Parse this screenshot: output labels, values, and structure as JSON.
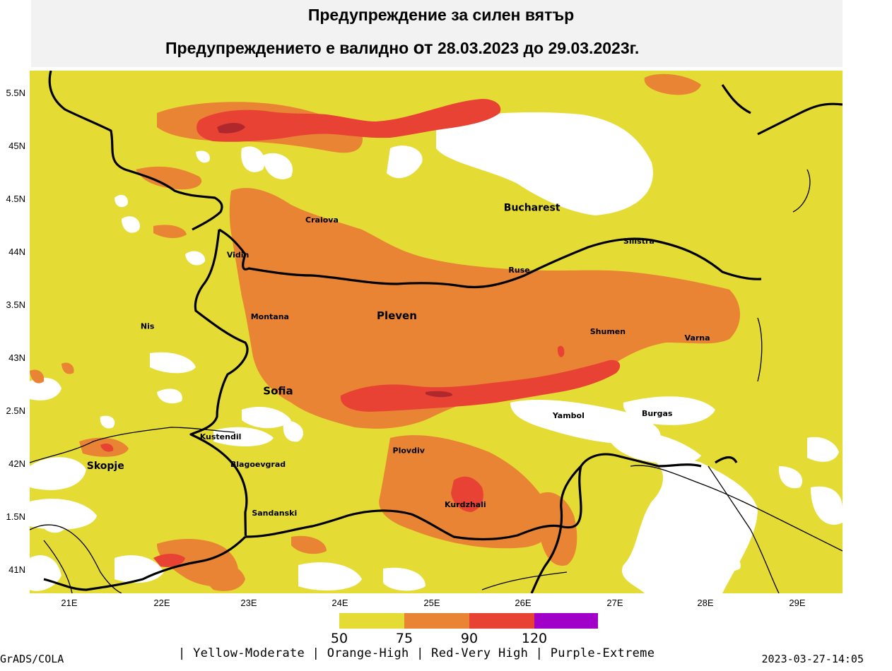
{
  "title": {
    "line1": "Предупреждение за силен вятър",
    "line2_prefix": "Предупреждението е валидно ",
    "line2_from": "от",
    "line2_dates": " 28.03.2023  до  29.03.2023г."
  },
  "colors": {
    "yellow": "#e4dc34",
    "orange": "#e88434",
    "red": "#e84234",
    "dark_red": "#b0282e",
    "purple": "#a000c8",
    "no_warning": "#ffffff"
  },
  "axes": {
    "lat_labels": [
      "5.5N",
      "45N",
      "4.5N",
      "44N",
      "3.5N",
      "43N",
      "2.5N",
      "42N",
      "1.5N",
      "41N"
    ],
    "lon_labels": [
      "21E",
      "22E",
      "23E",
      "24E",
      "25E",
      "26E",
      "27E",
      "28E",
      "29E"
    ]
  },
  "cities": [
    {
      "name": "Craiova",
      "lon": 23.8,
      "lat": 44.32
    },
    {
      "name": "Bucharest",
      "lon": 26.1,
      "lat": 44.43
    },
    {
      "name": "Silistra",
      "lon": 27.27,
      "lat": 44.12
    },
    {
      "name": "Vidin",
      "lon": 22.88,
      "lat": 43.99
    },
    {
      "name": "Ruse",
      "lon": 25.96,
      "lat": 43.85
    },
    {
      "name": "Montana",
      "lon": 23.23,
      "lat": 43.41
    },
    {
      "name": "Pleven",
      "lon": 24.62,
      "lat": 43.41
    },
    {
      "name": "Nis",
      "lon": 21.89,
      "lat": 43.32
    },
    {
      "name": "Shumen",
      "lon": 26.93,
      "lat": 43.27
    },
    {
      "name": "Varna",
      "lon": 27.91,
      "lat": 43.21
    },
    {
      "name": "Sofia",
      "lon": 23.32,
      "lat": 42.7
    },
    {
      "name": "Yambol",
      "lon": 26.5,
      "lat": 42.48
    },
    {
      "name": "Burgas",
      "lon": 27.47,
      "lat": 42.5
    },
    {
      "name": "Kustendil",
      "lon": 22.69,
      "lat": 42.28
    },
    {
      "name": "Plovdiv",
      "lon": 24.75,
      "lat": 42.15
    },
    {
      "name": "Skopje",
      "lon": 21.43,
      "lat": 42.0
    },
    {
      "name": "Blagoevgrad",
      "lon": 23.1,
      "lat": 42.02
    },
    {
      "name": "Kurdzhali",
      "lon": 25.37,
      "lat": 41.64
    },
    {
      "name": "Sandanski",
      "lon": 23.28,
      "lat": 41.56
    }
  ],
  "legend": {
    "ticks": [
      "50",
      "75",
      "90",
      "120"
    ],
    "description": "| Yellow-Moderate | Orange-High | Red-Very High | Purple-Extreme"
  },
  "footer": {
    "credit": "GrADS/COLA",
    "timestamp": "2023-03-27-14:05"
  }
}
